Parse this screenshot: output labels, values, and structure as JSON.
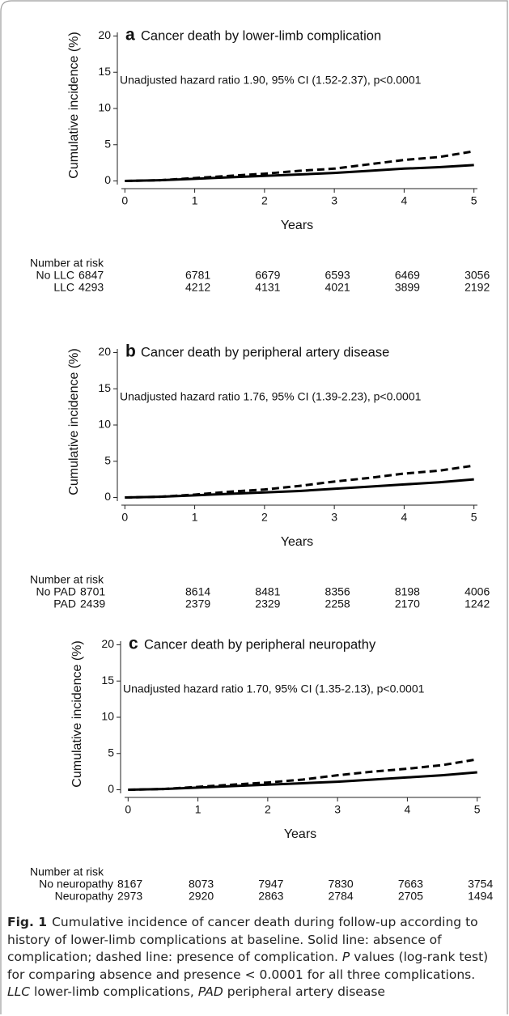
{
  "chart_data": [
    {
      "type": "line",
      "panel_label": "a",
      "title": "Cancer death by lower-limb complication",
      "annotation": "Unadjusted hazard ratio 1.90, 95% CI (1.52-2.37), p<0.0001",
      "xlabel": "Years",
      "ylabel": "Cumulative incidence (%)",
      "x": [
        0,
        0.5,
        1,
        1.5,
        2,
        2.5,
        3,
        3.5,
        4,
        4.5,
        5
      ],
      "series": [
        {
          "color": "#000000",
          "dash": false,
          "values": [
            0,
            0.1,
            0.3,
            0.5,
            0.7,
            0.9,
            1.1,
            1.4,
            1.7,
            1.9,
            2.2
          ]
        },
        {
          "color": "#000000",
          "dash": true,
          "values": [
            0,
            0.1,
            0.4,
            0.7,
            1.0,
            1.4,
            1.7,
            2.3,
            2.9,
            3.3,
            4.1
          ]
        }
      ],
      "xlim": [
        -0.05,
        5.05
      ],
      "xticks": [
        0,
        1,
        2,
        3,
        4,
        5
      ],
      "ylim": [
        -0.5,
        20.5
      ],
      "yticks": [
        0,
        5,
        10,
        15,
        20
      ],
      "risk_table": {
        "title": "Number at risk",
        "rows": [
          {
            "label": "No LLC",
            "values": [
              6847,
              6781,
              6679,
              6593,
              6469,
              3056
            ]
          },
          {
            "label": "LLC",
            "values": [
              4293,
              4212,
              4131,
              4021,
              3899,
              2192
            ]
          }
        ]
      }
    },
    {
      "type": "line",
      "panel_label": "b",
      "title": "Cancer death by peripheral artery disease",
      "annotation": "Unadjusted hazard ratio 1.76, 95% CI (1.39-2.23), p<0.0001",
      "xlabel": "Years",
      "ylabel": "Cumulative incidence (%)",
      "x": [
        0,
        0.5,
        1,
        1.5,
        2,
        2.5,
        3,
        3.5,
        4,
        4.5,
        5
      ],
      "series": [
        {
          "color": "#000000",
          "dash": false,
          "values": [
            0,
            0.1,
            0.3,
            0.5,
            0.7,
            0.9,
            1.2,
            1.5,
            1.8,
            2.1,
            2.5
          ]
        },
        {
          "color": "#000000",
          "dash": true,
          "values": [
            0,
            0.1,
            0.4,
            0.8,
            1.1,
            1.6,
            2.2,
            2.7,
            3.3,
            3.7,
            4.4
          ]
        }
      ],
      "xlim": [
        -0.05,
        5.05
      ],
      "xticks": [
        0,
        1,
        2,
        3,
        4,
        5
      ],
      "ylim": [
        -0.5,
        20.5
      ],
      "yticks": [
        0,
        5,
        10,
        15,
        20
      ],
      "risk_table": {
        "title": "Number at risk",
        "rows": [
          {
            "label": "No PAD",
            "values": [
              8701,
              8614,
              8481,
              8356,
              8198,
              4006
            ]
          },
          {
            "label": "PAD",
            "values": [
              2439,
              2379,
              2329,
              2258,
              2170,
              1242
            ]
          }
        ]
      }
    },
    {
      "type": "line",
      "panel_label": "c",
      "title": "Cancer death by peripheral neuropathy",
      "annotation": "Unadjusted hazard ratio 1.70, 95% CI (1.35-2.13), p<0.0001",
      "xlabel": "Years",
      "ylabel": "Cumulative incidence (%)",
      "x": [
        0,
        0.5,
        1,
        1.5,
        2,
        2.5,
        3,
        3.5,
        4,
        4.5,
        5
      ],
      "series": [
        {
          "color": "#000000",
          "dash": false,
          "values": [
            0,
            0.1,
            0.3,
            0.5,
            0.7,
            0.9,
            1.1,
            1.4,
            1.7,
            2.0,
            2.4
          ]
        },
        {
          "color": "#000000",
          "dash": true,
          "values": [
            0,
            0.1,
            0.4,
            0.7,
            1.0,
            1.4,
            2.0,
            2.5,
            2.9,
            3.4,
            4.2
          ]
        }
      ],
      "xlim": [
        -0.05,
        5.05
      ],
      "xticks": [
        0,
        1,
        2,
        3,
        4,
        5
      ],
      "ylim": [
        -0.5,
        20.5
      ],
      "yticks": [
        0,
        5,
        10,
        15,
        20
      ],
      "risk_table": {
        "title": "Number at risk",
        "rows": [
          {
            "label": "No neuropathy",
            "values": [
              8167,
              8073,
              7947,
              7830,
              7663,
              3754
            ]
          },
          {
            "label": "Neuropathy",
            "values": [
              2973,
              2920,
              2863,
              2784,
              2705,
              1494
            ]
          }
        ]
      }
    }
  ],
  "caption": {
    "label": "Fig. 1",
    "segments": [
      {
        "text": "Cumulative incidence of cancer death during follow-up according to history of lower-limb complications at baseline. Solid line: absence of complication; dashed line: presence of complication."
      },
      {
        "text": "P",
        "italic": true
      },
      {
        "text": "values (log-rank test) for comparing absence and presence < 0.0001 for all three complications."
      },
      {
        "text": "LLC",
        "italic": true
      },
      {
        "text": "lower-limb complications,"
      },
      {
        "text": "PAD",
        "italic": true
      },
      {
        "text": "peripheral artery disease"
      }
    ]
  }
}
